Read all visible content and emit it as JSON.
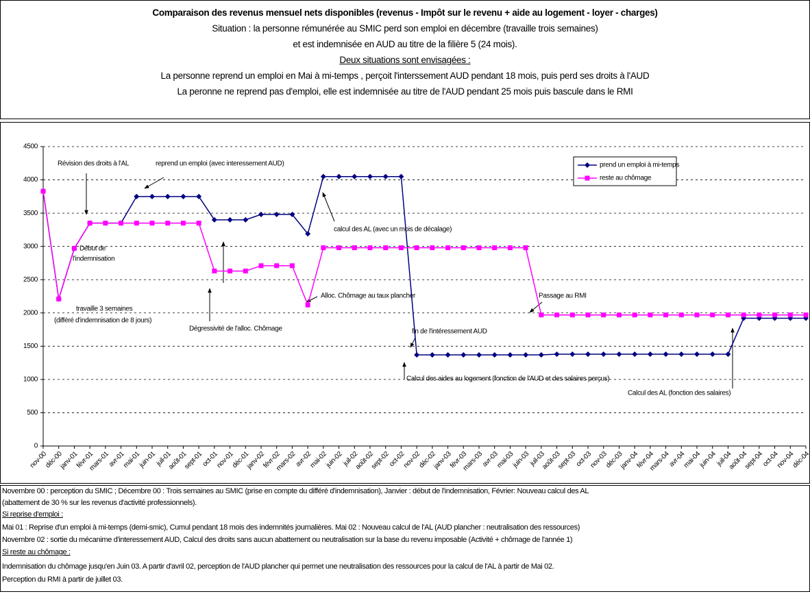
{
  "header": {
    "title": "Comparaison des revenus mensuel nets disponibles (revenus - Impôt sur le revenu + aide au logement - loyer - charges)",
    "lines": [
      "Situation : la personne rémunérée au SMIC perd son emploi en décembre (travaille trois semaines)",
      "et est indemnisée en AUD au titre de la filière 5 (24 mois).",
      "Deux situations sont envisagées :",
      "La personne reprend un emploi  en Mai à mi-temps , perçoit l'interssement AUD pendant 18 mois, puis perd ses droits à l'AUD",
      "La peronne ne reprend pas d'emploi, elle est indemnisée au titre de l'AUD pendant 25 mois puis bascule dans le RMI"
    ]
  },
  "chart_data": {
    "type": "line",
    "categories": [
      "nov-00",
      "déc-00",
      "janv-01",
      "févr-01",
      "mars-01",
      "avr-01",
      "mai-01",
      "juin-01",
      "juil-01",
      "août-01",
      "sept-01",
      "oct-01",
      "nov-01",
      "déc-01",
      "janv-02",
      "févr-02",
      "mars-02",
      "avr-02",
      "mai-02",
      "juin-02",
      "juil-02",
      "août-02",
      "sept-02",
      "oct-02",
      "nov-02",
      "déc-02",
      "janv-03",
      "févr-03",
      "mars-03",
      "avr-03",
      "mai-03",
      "juin-03",
      "juil-03",
      "août-03",
      "sept-03",
      "oct-03",
      "nov-03",
      "déc-03",
      "janv-04",
      "févr-04",
      "mars-04",
      "avr-04",
      "mai-04",
      "juin-04",
      "juil-04",
      "août-04",
      "sept-04",
      "oct-04",
      "nov-04",
      "déc-04"
    ],
    "series": [
      {
        "name": "prend un emploi à mi-temps",
        "color": "#000080",
        "marker": "diamond",
        "values": [
          3830,
          2210,
          2970,
          3350,
          3350,
          3350,
          3750,
          3750,
          3750,
          3750,
          3750,
          3400,
          3400,
          3400,
          3480,
          3480,
          3480,
          3190,
          4050,
          4050,
          4050,
          4050,
          4050,
          4050,
          1370,
          1370,
          1370,
          1370,
          1370,
          1370,
          1370,
          1370,
          1370,
          1380,
          1380,
          1380,
          1380,
          1380,
          1380,
          1380,
          1380,
          1380,
          1380,
          1380,
          1380,
          1920,
          1920,
          1920,
          1920,
          1920
        ]
      },
      {
        "name": "reste au chômage",
        "color": "#ff00ff",
        "marker": "square",
        "values": [
          3830,
          2210,
          2970,
          3350,
          3350,
          3350,
          3350,
          3350,
          3350,
          3350,
          3350,
          2630,
          2630,
          2630,
          2710,
          2710,
          2710,
          2120,
          2980,
          2980,
          2980,
          2980,
          2980,
          2980,
          2980,
          2980,
          2980,
          2980,
          2980,
          2980,
          2980,
          2980,
          1970,
          1970,
          1970,
          1970,
          1970,
          1970,
          1970,
          1970,
          1970,
          1970,
          1970,
          1970,
          1970,
          1970,
          1970,
          1970,
          1970,
          1970
        ]
      }
    ],
    "ylim": [
      0,
      4500
    ],
    "yticks": [
      0,
      500,
      1000,
      1500,
      2000,
      2500,
      3000,
      3500,
      4000,
      4500
    ],
    "grid": true,
    "annotations": [
      "Révision des droits à l'AL",
      "reprend un emploi (avec interessement AUD)",
      "calcul des AL (avec un mois de décalage)",
      "Début de",
      "l'indemnisation",
      "Alloc. Chômage au taux plancher",
      "travaille 3 semaines",
      "(différé d'indemnisation de 8 jours)",
      "Dégressivité de l'alloc. Chômage",
      "Passage au RMI",
      "fin de l'intéressement AUD",
      "Calcul des aides au logement (fonction de l'AUD et des salaires perçus)",
      "Calcul des AL (fonction des salaires)"
    ]
  },
  "notes": [
    "Novembre 00 : perception du SMIC ; Décembre 00 : Trois semaines au SMIC (prise en compte du différé d'indemnisation), Janvier : début de l'indemnisation, Février: Nouveau calcul des AL",
    "(abattement de 30 % sur les revenus d'activité professionnels).",
    "Si reprise d'emploi :",
    "Mai 01 : Reprise d'un emploi  à mi-temps (demi-smic), Cumul pendant 18 mois des indemnités journalières. Mai 02 : Nouveau calcul de l'AL (AUD plancher : neutralisation des ressources)",
    "Novembre 02 : sortie du mécanime d'interessement AUD, Calcul des droits sans aucun abattement ou neutralisation sur la base du revenu imposable (Activité + chômage de l'année 1)",
    "Si reste au chômage :",
    "Indemnisation du chômage jusqu'en Juin 03. A partir d'avril 02, perception de l'AUD plancher qui permet une neutralisation des ressources pour la calcul de l'AL à partir de Mai 02.",
    "Perception du RMI à partir de juillet 03."
  ]
}
